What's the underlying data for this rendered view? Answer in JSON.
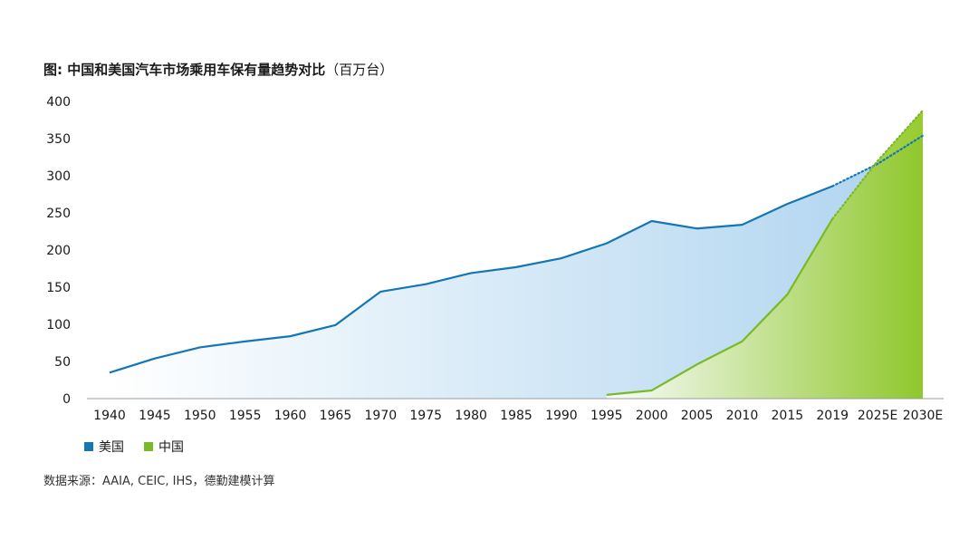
{
  "title": {
    "bold": "图: 中国和美国汽车市场乘用车保有量趋势对比",
    "unit": "（百万台）"
  },
  "source": "数据来源：AAIA, CEIC, IHS，德勤建模计算",
  "colors": {
    "usa": "#1477b3",
    "china": "#7ab929"
  },
  "chart_data": {
    "type": "area",
    "title": "图: 中国和美国汽车市场乘用车保有量趋势对比（百万台）",
    "xlabel": "",
    "ylabel": "",
    "ylim": [
      0,
      400
    ],
    "y_ticks": [
      "0",
      "50",
      "100",
      "150",
      "200",
      "250",
      "300",
      "350",
      "400"
    ],
    "categories": [
      "1940",
      "1945",
      "1950",
      "1955",
      "1960",
      "1965",
      "1970",
      "1975",
      "1980",
      "1985",
      "1990",
      "1995",
      "2000",
      "2005",
      "2010",
      "2015",
      "2019",
      "2025E",
      "2030E"
    ],
    "grid": false,
    "legend_position": "bottom-left",
    "projection_start": "2019",
    "series": [
      {
        "name": "美国",
        "values": [
          35,
          54,
          69,
          77,
          84,
          99,
          144,
          154,
          169,
          177,
          189,
          209,
          239,
          229,
          234,
          262,
          286,
          316,
          354
        ]
      },
      {
        "name": "中国",
        "values": [
          null,
          null,
          null,
          null,
          null,
          null,
          null,
          null,
          null,
          null,
          null,
          5,
          11,
          46,
          77,
          140,
          242,
          320,
          388
        ]
      }
    ]
  }
}
